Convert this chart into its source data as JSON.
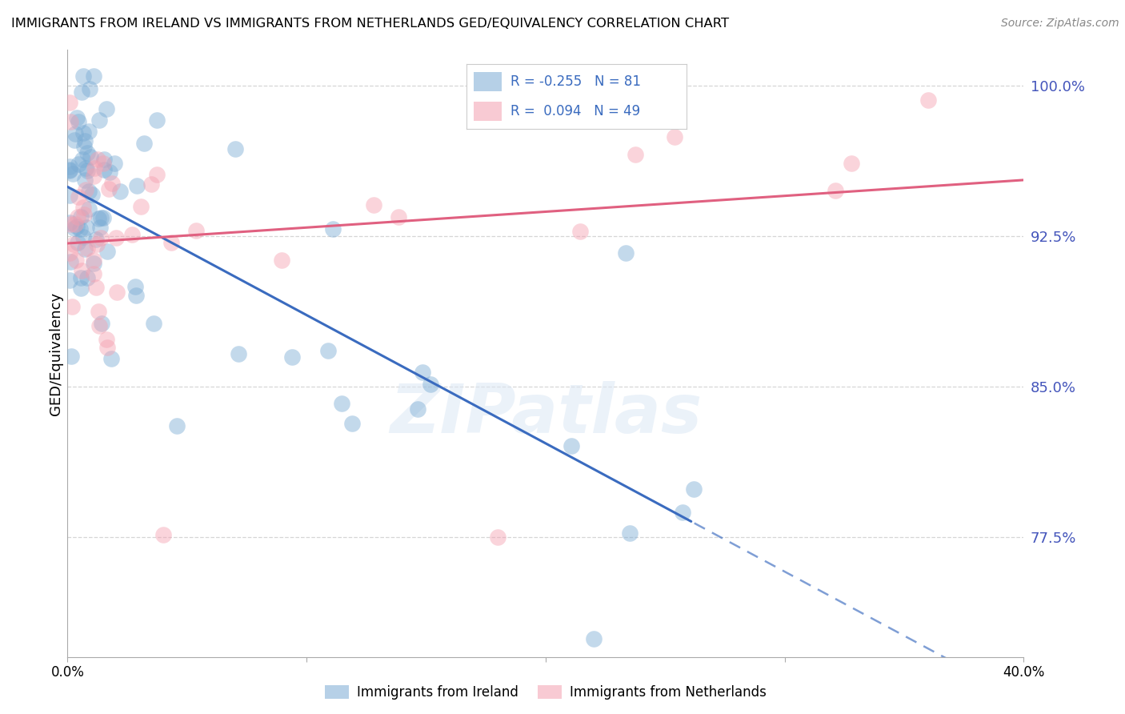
{
  "title": "IMMIGRANTS FROM IRELAND VS IMMIGRANTS FROM NETHERLANDS GED/EQUIVALENCY CORRELATION CHART",
  "source": "Source: ZipAtlas.com",
  "ylabel": "GED/Equivalency",
  "xlim": [
    0.0,
    0.4
  ],
  "ylim": [
    0.715,
    1.018
  ],
  "yticks": [
    0.775,
    0.85,
    0.925,
    1.0
  ],
  "ytick_labels": [
    "77.5%",
    "85.0%",
    "92.5%",
    "100.0%"
  ],
  "xticks": [
    0.0,
    0.1,
    0.2,
    0.3,
    0.4
  ],
  "xtick_labels": [
    "0.0%",
    "",
    "",
    "",
    "40.0%"
  ],
  "ireland_R": -0.255,
  "ireland_N": 81,
  "netherlands_R": 0.094,
  "netherlands_N": 49,
  "ireland_color": "#7aabd4",
  "netherlands_color": "#f4a0b0",
  "trend_ireland_color": "#3a6bbf",
  "trend_netherlands_color": "#e06080",
  "legend_text_color": "#3a6bbf",
  "background_color": "#ffffff",
  "grid_color": "#cccccc",
  "title_fontsize": 13,
  "axis_label_color": "#4455bb"
}
